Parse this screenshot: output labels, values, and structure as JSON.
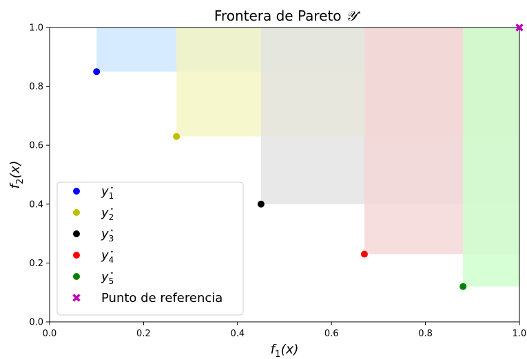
{
  "chart_data": {
    "type": "scatter",
    "title": "Frontera de Pareto 𝒴*",
    "xlabel": "f1(x)",
    "ylabel": "f2(x)",
    "xlim": [
      0.0,
      1.0
    ],
    "ylim": [
      0.0,
      1.0
    ],
    "xticks": [
      "0.0",
      "0.2",
      "0.4",
      "0.6",
      "0.8",
      "1.0"
    ],
    "yticks": [
      "0.0",
      "0.2",
      "0.4",
      "0.6",
      "0.8",
      "1.0"
    ],
    "grid": false,
    "legend_position": "lower-left",
    "series": [
      {
        "name": "y1*",
        "x": 0.1,
        "y": 0.85,
        "color": "#0000ff",
        "fill": "#cce6ff"
      },
      {
        "name": "y2*",
        "x": 0.27,
        "y": 0.63,
        "color": "#bfbf00",
        "fill": "#f5f5c0"
      },
      {
        "name": "y3*",
        "x": 0.45,
        "y": 0.4,
        "color": "#000000",
        "fill": "#e2e2e2"
      },
      {
        "name": "y4*",
        "x": 0.67,
        "y": 0.23,
        "color": "#ff0000",
        "fill": "#f5d6d6"
      },
      {
        "name": "y5*",
        "x": 0.88,
        "y": 0.12,
        "color": "#008000",
        "fill": "#ccffcc"
      }
    ],
    "reference_point": {
      "name": "Punto de referencia",
      "x": 1.0,
      "y": 1.0,
      "color": "#bf00bf"
    }
  }
}
